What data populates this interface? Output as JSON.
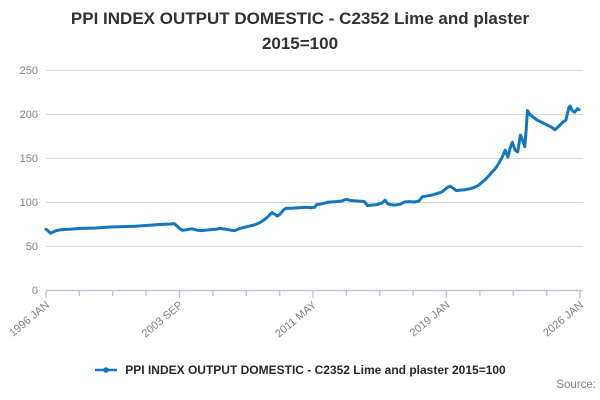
{
  "title": {
    "line1": "PPI INDEX OUTPUT DOMESTIC - C2352 Lime and plaster",
    "line2": "2015=100"
  },
  "legend": {
    "label": "PPI INDEX OUTPUT DOMESTIC - C2352 Lime and plaster 2015=100"
  },
  "source_label": "Source:",
  "colors": {
    "line": "#1377bd",
    "grid": "#d9d9d9",
    "axis": "#b9c8dc",
    "tick_label": "#828282",
    "title_text": "#323232",
    "legend_text": "#282828",
    "source_text": "#828282",
    "background": "#ffffff"
  },
  "chart_data": {
    "type": "line",
    "title": "PPI INDEX OUTPUT DOMESTIC - C2352 Lime and plaster 2015=100",
    "xlabel": "",
    "ylabel": "",
    "ylim": [
      0,
      250
    ],
    "y_ticks": [
      0,
      50,
      100,
      150,
      200,
      250
    ],
    "x_range_years": [
      1996.0,
      2026.0
    ],
    "x_tick_labels": [
      "1996 JAN",
      "2003 SEP",
      "2011 MAY",
      "2019 JAN",
      "2026 JAN"
    ],
    "x_minor_divisions": 4,
    "grid": "horizontal",
    "legend_position": "bottom",
    "series": [
      {
        "name": "PPI INDEX OUTPUT DOMESTIC - C2352 Lime and plaster 2015=100",
        "points": [
          [
            1996.0,
            69
          ],
          [
            1996.08,
            68
          ],
          [
            1996.25,
            64.5
          ],
          [
            1996.42,
            66
          ],
          [
            1996.58,
            67.5
          ],
          [
            1996.83,
            68.5
          ],
          [
            1997.3,
            69
          ],
          [
            1998.0,
            70
          ],
          [
            1998.8,
            70.5
          ],
          [
            1999.5,
            71.5
          ],
          [
            2000.3,
            72
          ],
          [
            2001.0,
            72.5
          ],
          [
            2001.8,
            73.5
          ],
          [
            2002.5,
            74.5
          ],
          [
            2003.0,
            75
          ],
          [
            2003.2,
            75.5
          ],
          [
            2003.35,
            73
          ],
          [
            2003.5,
            70
          ],
          [
            2003.65,
            68
          ],
          [
            2003.9,
            68.5
          ],
          [
            2004.2,
            69.5
          ],
          [
            2004.5,
            68
          ],
          [
            2004.7,
            67.5
          ],
          [
            2004.9,
            68
          ],
          [
            2005.2,
            68.5
          ],
          [
            2005.5,
            69
          ],
          [
            2005.8,
            70
          ],
          [
            2006.1,
            69
          ],
          [
            2006.4,
            68
          ],
          [
            2006.6,
            67.5
          ],
          [
            2006.9,
            70
          ],
          [
            2007.2,
            71.5
          ],
          [
            2007.5,
            73
          ],
          [
            2007.8,
            74.5
          ],
          [
            2008.0,
            76.5
          ],
          [
            2008.2,
            79
          ],
          [
            2008.4,
            82
          ],
          [
            2008.55,
            85
          ],
          [
            2008.7,
            88
          ],
          [
            2008.85,
            86
          ],
          [
            2009.0,
            84
          ],
          [
            2009.1,
            85.5
          ],
          [
            2009.2,
            87.5
          ],
          [
            2009.35,
            91
          ],
          [
            2009.5,
            93
          ],
          [
            2009.8,
            93
          ],
          [
            2010.2,
            93.5
          ],
          [
            2010.6,
            94
          ],
          [
            2010.9,
            93.5
          ],
          [
            2011.1,
            94
          ],
          [
            2011.2,
            97
          ],
          [
            2011.5,
            98
          ],
          [
            2011.8,
            99.5
          ],
          [
            2011.95,
            100
          ],
          [
            2012.3,
            100.5
          ],
          [
            2012.6,
            101
          ],
          [
            2012.85,
            103
          ],
          [
            2013.05,
            102
          ],
          [
            2013.3,
            101.5
          ],
          [
            2013.6,
            101
          ],
          [
            2013.9,
            100.5
          ],
          [
            2014.05,
            96
          ],
          [
            2014.3,
            96.5
          ],
          [
            2014.6,
            97
          ],
          [
            2014.85,
            98.5
          ],
          [
            2015.05,
            102
          ],
          [
            2015.2,
            98
          ],
          [
            2015.35,
            97
          ],
          [
            2015.6,
            96.5
          ],
          [
            2015.9,
            97.5
          ],
          [
            2016.15,
            100
          ],
          [
            2016.4,
            100.5
          ],
          [
            2016.7,
            100
          ],
          [
            2016.95,
            101
          ],
          [
            2017.15,
            106
          ],
          [
            2017.45,
            107
          ],
          [
            2017.7,
            108
          ],
          [
            2017.95,
            109.5
          ],
          [
            2018.2,
            111
          ],
          [
            2018.4,
            114
          ],
          [
            2018.55,
            116.5
          ],
          [
            2018.7,
            118
          ],
          [
            2018.85,
            116
          ],
          [
            2019.05,
            113
          ],
          [
            2019.3,
            113.5
          ],
          [
            2019.55,
            114
          ],
          [
            2019.8,
            115
          ],
          [
            2020.05,
            116.5
          ],
          [
            2020.3,
            119
          ],
          [
            2020.5,
            122.5
          ],
          [
            2020.7,
            126
          ],
          [
            2020.9,
            130
          ],
          [
            2021.05,
            134
          ],
          [
            2021.2,
            137
          ],
          [
            2021.35,
            141
          ],
          [
            2021.5,
            146
          ],
          [
            2021.65,
            152
          ],
          [
            2021.8,
            159
          ],
          [
            2021.95,
            151
          ],
          [
            2022.1,
            163
          ],
          [
            2022.2,
            168
          ],
          [
            2022.35,
            159
          ],
          [
            2022.5,
            157
          ],
          [
            2022.65,
            176
          ],
          [
            2022.8,
            169
          ],
          [
            2022.9,
            163
          ],
          [
            2022.97,
            181
          ],
          [
            2023.05,
            204
          ],
          [
            2023.2,
            199
          ],
          [
            2023.4,
            196
          ],
          [
            2023.6,
            193
          ],
          [
            2023.8,
            191
          ],
          [
            2024.0,
            189
          ],
          [
            2024.2,
            187
          ],
          [
            2024.4,
            185
          ],
          [
            2024.6,
            182
          ],
          [
            2024.75,
            185
          ],
          [
            2024.9,
            188
          ],
          [
            2025.05,
            191
          ],
          [
            2025.2,
            193
          ],
          [
            2025.28,
            199
          ],
          [
            2025.37,
            207
          ],
          [
            2025.45,
            209
          ],
          [
            2025.53,
            205
          ],
          [
            2025.62,
            203
          ],
          [
            2025.7,
            202
          ],
          [
            2025.78,
            204
          ],
          [
            2025.87,
            206
          ],
          [
            2025.95,
            205
          ]
        ]
      }
    ]
  }
}
